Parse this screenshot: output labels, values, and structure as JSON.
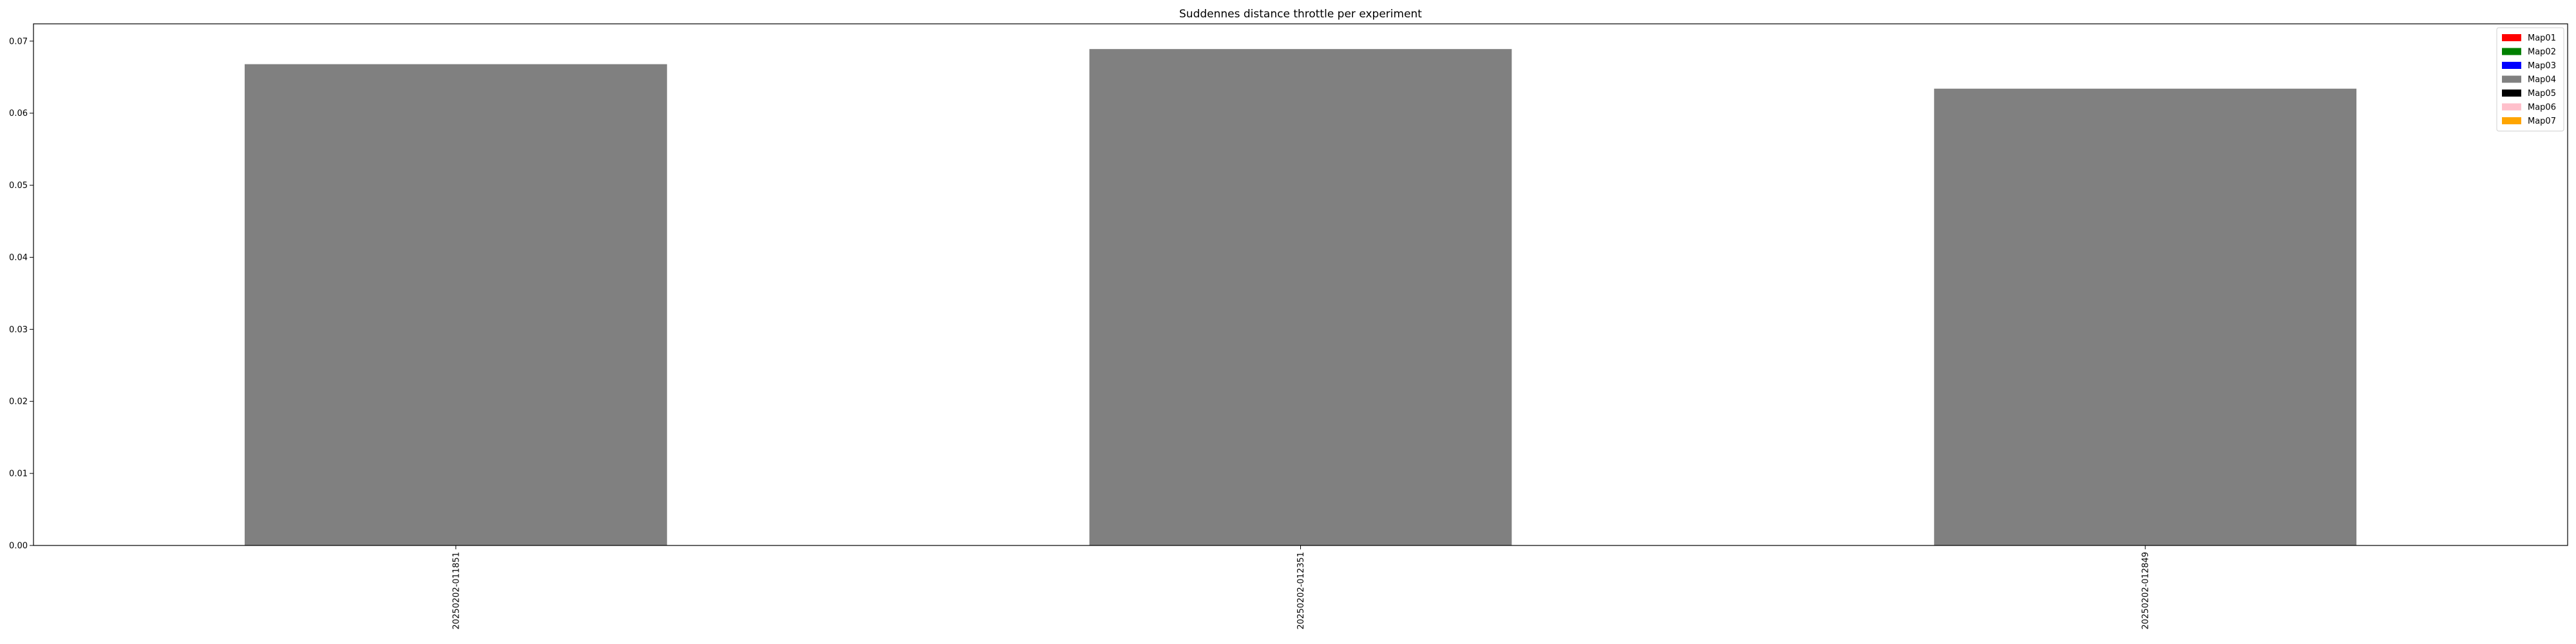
{
  "chart_data": {
    "type": "bar",
    "title": "Suddennes distance throttle per experiment",
    "xlabel": "",
    "ylabel": "",
    "categories": [
      "20250202-011851",
      "20250202-012351",
      "20250202-012849"
    ],
    "series": [
      {
        "name": "Map04",
        "color": "#808080",
        "values": [
          0.0668,
          0.0689,
          0.0634
        ]
      }
    ],
    "ylim": [
      0,
      0.0724
    ],
    "yticks": [
      0.0,
      0.01,
      0.02,
      0.03,
      0.04,
      0.05,
      0.06,
      0.07
    ],
    "ytick_labels": [
      "0.00",
      "0.01",
      "0.02",
      "0.03",
      "0.04",
      "0.05",
      "0.06",
      "0.07"
    ],
    "grid": false,
    "legend": {
      "placement": "top-right",
      "entries": [
        {
          "label": "Map01",
          "color": "#ff0000"
        },
        {
          "label": "Map02",
          "color": "#008000"
        },
        {
          "label": "Map03",
          "color": "#0000ff"
        },
        {
          "label": "Map04",
          "color": "#808080"
        },
        {
          "label": "Map05",
          "color": "#000000"
        },
        {
          "label": "Map06",
          "color": "#ffc0cb"
        },
        {
          "label": "Map07",
          "color": "#ffa500"
        }
      ]
    }
  }
}
